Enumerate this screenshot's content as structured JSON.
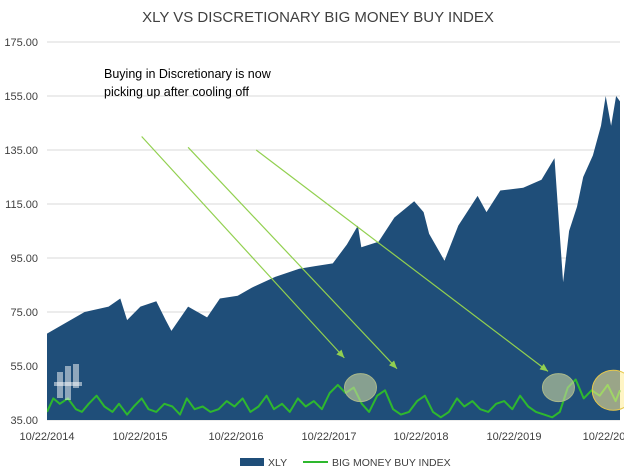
{
  "chart_data": {
    "type": "area",
    "title": "XLY VS DISCRETIONARY BIG MONEY BUY INDEX",
    "annotation": [
      "Buying in Discretionary is now",
      "picking up after cooling off"
    ],
    "ylim": [
      35,
      175
    ],
    "y_ticks": [
      "175.00",
      "155.00",
      "135.00",
      "115.00",
      "95.00",
      "75.00",
      "55.00",
      "35.00"
    ],
    "x_ticks": [
      "10/22/2014",
      "10/22/2015",
      "10/22/2016",
      "10/22/2017",
      "10/22/2018",
      "10/22/2019",
      "10/22/20"
    ],
    "x_range": [
      "2014-10-22",
      "2020-10-27"
    ],
    "grid": "horizontal",
    "legend_position": "bottom",
    "series": [
      {
        "name": "XLY",
        "style": "area",
        "color": "#1f4e79",
        "x": [
          "2014-10-22",
          "2014-12-15",
          "2015-03-15",
          "2015-06-15",
          "2015-07-30",
          "2015-08-25",
          "2015-10-15",
          "2015-12-15",
          "2016-01-20",
          "2016-02-11",
          "2016-04-15",
          "2016-06-27",
          "2016-08-15",
          "2016-10-22",
          "2016-12-15",
          "2017-03-15",
          "2017-06-15",
          "2017-08-15",
          "2017-10-22",
          "2017-12-15",
          "2018-01-26",
          "2018-02-08",
          "2018-04-15",
          "2018-06-15",
          "2018-08-30",
          "2018-10-05",
          "2018-10-26",
          "2018-12-24",
          "2019-02-15",
          "2019-04-30",
          "2019-06-03",
          "2019-07-26",
          "2019-10-22",
          "2019-12-31",
          "2020-02-19",
          "2020-03-23",
          "2020-04-15",
          "2020-05-15",
          "2020-06-08",
          "2020-07-15",
          "2020-08-15",
          "2020-09-02",
          "2020-09-23",
          "2020-10-12",
          "2020-10-27"
        ],
        "y": [
          67,
          70,
          75,
          77,
          80,
          72,
          77,
          79,
          72,
          68,
          77,
          73,
          80,
          81,
          84,
          88,
          91,
          92,
          93,
          100,
          107,
          99,
          101,
          110,
          116,
          112,
          104,
          94,
          107,
          118,
          112,
          120,
          121,
          124,
          132,
          86,
          105,
          114,
          125,
          133,
          144,
          155,
          144,
          155,
          153
        ]
      },
      {
        "name": "BIG MONEY BUY INDEX",
        "style": "line",
        "color": "#2eb82e",
        "x": [
          "2014-10-22",
          "2014-11-15",
          "2014-12-10",
          "2015-01-10",
          "2015-02-10",
          "2015-03-05",
          "2015-03-31",
          "2015-04-30",
          "2015-05-30",
          "2015-06-30",
          "2015-07-25",
          "2015-08-25",
          "2015-09-20",
          "2015-10-20",
          "2015-11-15",
          "2015-12-15",
          "2016-01-15",
          "2016-02-15",
          "2016-03-15",
          "2016-04-10",
          "2016-05-10",
          "2016-06-10",
          "2016-07-10",
          "2016-08-10",
          "2016-09-10",
          "2016-10-10",
          "2016-11-10",
          "2016-12-10",
          "2017-01-10",
          "2017-02-10",
          "2017-03-10",
          "2017-04-10",
          "2017-05-10",
          "2017-06-10",
          "2017-07-10",
          "2017-08-10",
          "2017-09-10",
          "2017-10-10",
          "2017-11-10",
          "2017-12-10",
          "2018-01-10",
          "2018-02-10",
          "2018-03-10",
          "2018-04-10",
          "2018-05-10",
          "2018-06-10",
          "2018-07-10",
          "2018-08-10",
          "2018-09-10",
          "2018-10-10",
          "2018-11-10",
          "2018-12-10",
          "2019-01-10",
          "2019-02-10",
          "2019-03-10",
          "2019-04-10",
          "2019-05-10",
          "2019-06-10",
          "2019-07-10",
          "2019-08-10",
          "2019-09-10",
          "2019-10-10",
          "2019-11-10",
          "2019-12-10",
          "2020-01-10",
          "2020-02-10",
          "2020-03-10",
          "2020-04-10",
          "2020-05-10",
          "2020-06-10",
          "2020-07-10",
          "2020-08-10",
          "2020-09-10",
          "2020-10-10",
          "2020-10-27"
        ],
        "y": [
          38,
          43,
          41,
          43,
          39,
          38,
          41,
          44,
          40,
          38,
          41,
          37,
          40,
          43,
          39,
          38,
          41,
          40,
          37,
          43,
          39,
          40,
          38,
          39,
          42,
          40,
          43,
          38,
          40,
          44,
          39,
          41,
          38,
          43,
          40,
          42,
          39,
          45,
          48,
          45,
          47,
          41,
          38,
          44,
          46,
          39,
          37,
          38,
          42,
          44,
          38,
          36,
          38,
          43,
          40,
          42,
          39,
          38,
          41,
          42,
          39,
          44,
          40,
          38,
          37,
          36,
          38,
          47,
          50,
          43,
          46,
          44,
          48,
          42,
          46
        ]
      }
    ],
    "highlights": [
      {
        "x": "2018-02-05",
        "y": 47
      },
      {
        "x": "2020-03-05",
        "y": 47
      },
      {
        "x": "2020-10-01",
        "y": 46
      }
    ],
    "arrows": [
      {
        "from": [
          "2015-10-20",
          140
        ],
        "to": [
          "2017-12-05",
          58
        ]
      },
      {
        "from": [
          "2016-04-15",
          136
        ],
        "to": [
          "2018-06-25",
          54
        ]
      },
      {
        "from": [
          "2017-01-01",
          135
        ],
        "to": [
          "2020-01-25",
          53
        ]
      }
    ],
    "watermark": "logo-mark"
  }
}
